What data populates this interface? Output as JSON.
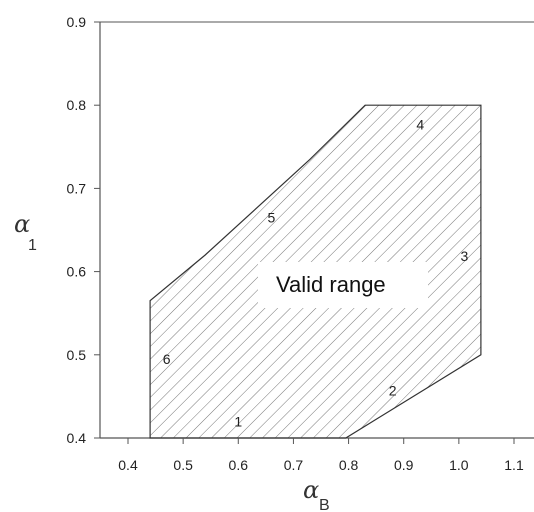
{
  "chart_data": {
    "type": "area",
    "title": "",
    "x_ticks": [
      "0.4",
      "0.5",
      "0.6",
      "0.7",
      "0.8",
      "0.9",
      "1.0",
      "1.1"
    ],
    "y_ticks": [
      "0.4",
      "0.5",
      "0.6",
      "0.7",
      "0.8",
      "0.9"
    ],
    "xlim": [
      0.35,
      1.12
    ],
    "ylim": [
      0.4,
      0.9
    ],
    "xlabel": {
      "symbol": "α",
      "subscript": "B"
    },
    "ylabel": {
      "symbol": "α",
      "subscript": "1"
    },
    "region": {
      "label": "Valid range",
      "fill_pattern": "diagonal-hatch",
      "vertices": [
        [
          0.44,
          0.4
        ],
        [
          0.795,
          0.4
        ],
        [
          1.04,
          0.5
        ],
        [
          1.04,
          0.8
        ],
        [
          0.83,
          0.8
        ],
        [
          0.73,
          0.735
        ],
        [
          0.54,
          0.62
        ],
        [
          0.44,
          0.565
        ]
      ]
    },
    "boundary_labels": [
      {
        "text": "1",
        "x": 0.6,
        "y": 0.42
      },
      {
        "text": "2",
        "x": 0.88,
        "y": 0.457
      },
      {
        "text": "3",
        "x": 1.01,
        "y": 0.619
      },
      {
        "text": "4",
        "x": 0.93,
        "y": 0.777
      },
      {
        "text": "5",
        "x": 0.66,
        "y": 0.665
      },
      {
        "text": "6",
        "x": 0.47,
        "y": 0.495
      }
    ],
    "grid": false
  }
}
